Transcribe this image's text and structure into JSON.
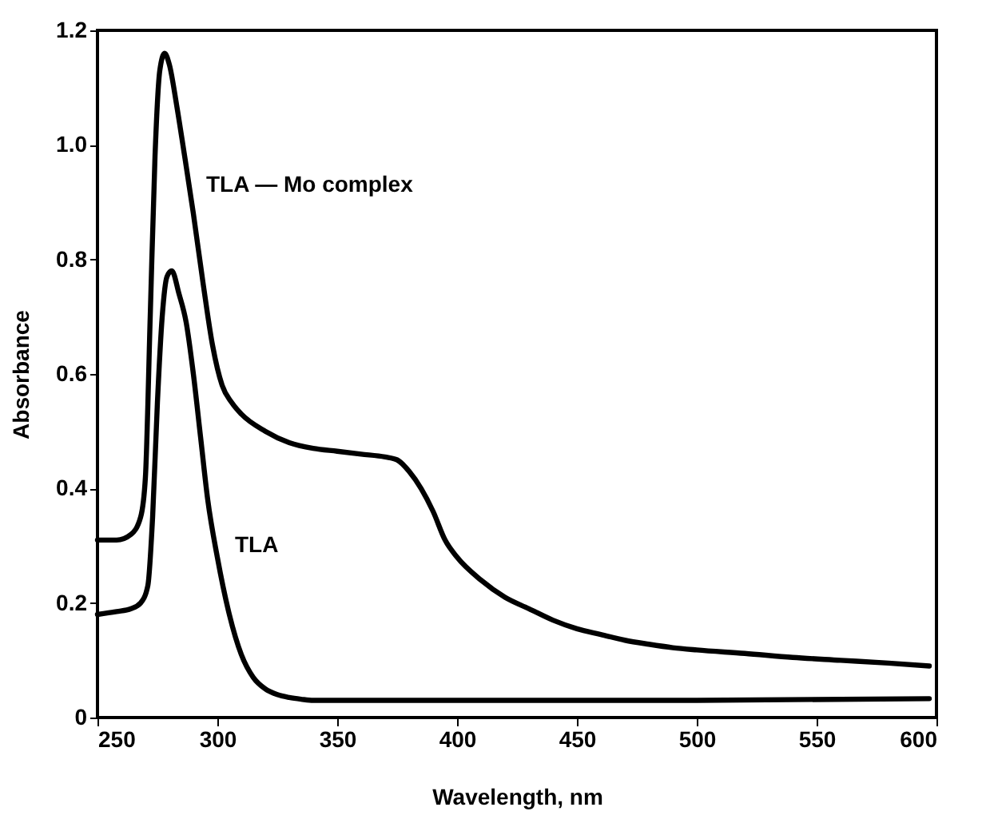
{
  "chart_data": {
    "type": "line",
    "xlabel": "Wavelength,    nm",
    "ylabel": "Absorbance",
    "xlim": [
      250,
      600
    ],
    "xticks": [
      250,
      300,
      350,
      400,
      450,
      500,
      550,
      600
    ],
    "ylim": [
      0,
      1.2
    ],
    "yticks": [
      0,
      0.2,
      0.4,
      0.6,
      0.8,
      {
        "value": 1,
        "label": "1.0"
      },
      1.2
    ],
    "grid": false,
    "line_style": "solid",
    "marker": "none",
    "annotations": [
      {
        "text": "TLA — Mo complex",
        "x": 290,
        "y": 0.93
      },
      {
        "text": "TLA",
        "x": 302,
        "y": 0.3
      }
    ],
    "series": [
      {
        "color": "#000000",
        "x": [
          250,
          258,
          264,
          268,
          270,
          272,
          274,
          276,
          278,
          280,
          283,
          286,
          290,
          294,
          298,
          302,
          306,
          310,
          320,
          330,
          340,
          350,
          360,
          370,
          375,
          380,
          385,
          390,
          395,
          400,
          410,
          420,
          430,
          440,
          450,
          460,
          470,
          480,
          490,
          500,
          520,
          540,
          560,
          580,
          597
        ],
        "values": [
          0.31,
          0.31,
          0.32,
          0.35,
          0.42,
          0.7,
          0.98,
          1.13,
          1.16,
          1.14,
          1.07,
          0.99,
          0.88,
          0.76,
          0.65,
          0.58,
          0.55,
          0.53,
          0.5,
          0.48,
          0.47,
          0.465,
          0.46,
          0.455,
          0.45,
          0.43,
          0.4,
          0.36,
          0.31,
          0.28,
          0.24,
          0.21,
          0.19,
          0.17,
          0.155,
          0.145,
          0.135,
          0.128,
          0.122,
          0.118,
          0.112,
          0.105,
          0.1,
          0.095,
          0.09
        ]
      },
      {
        "color": "#000000",
        "x": [
          250,
          258,
          264,
          268,
          271,
          273,
          275,
          277,
          279,
          281,
          284,
          287,
          290,
          293,
          296,
          300,
          305,
          310,
          315,
          320,
          325,
          330,
          335,
          340,
          350,
          400,
          500,
          597
        ],
        "values": [
          0.18,
          0.185,
          0.19,
          0.2,
          0.23,
          0.35,
          0.55,
          0.7,
          0.77,
          0.78,
          0.74,
          0.69,
          0.6,
          0.49,
          0.38,
          0.28,
          0.18,
          0.11,
          0.07,
          0.05,
          0.04,
          0.035,
          0.032,
          0.03,
          0.03,
          0.03,
          0.03,
          0.033
        ]
      }
    ]
  }
}
